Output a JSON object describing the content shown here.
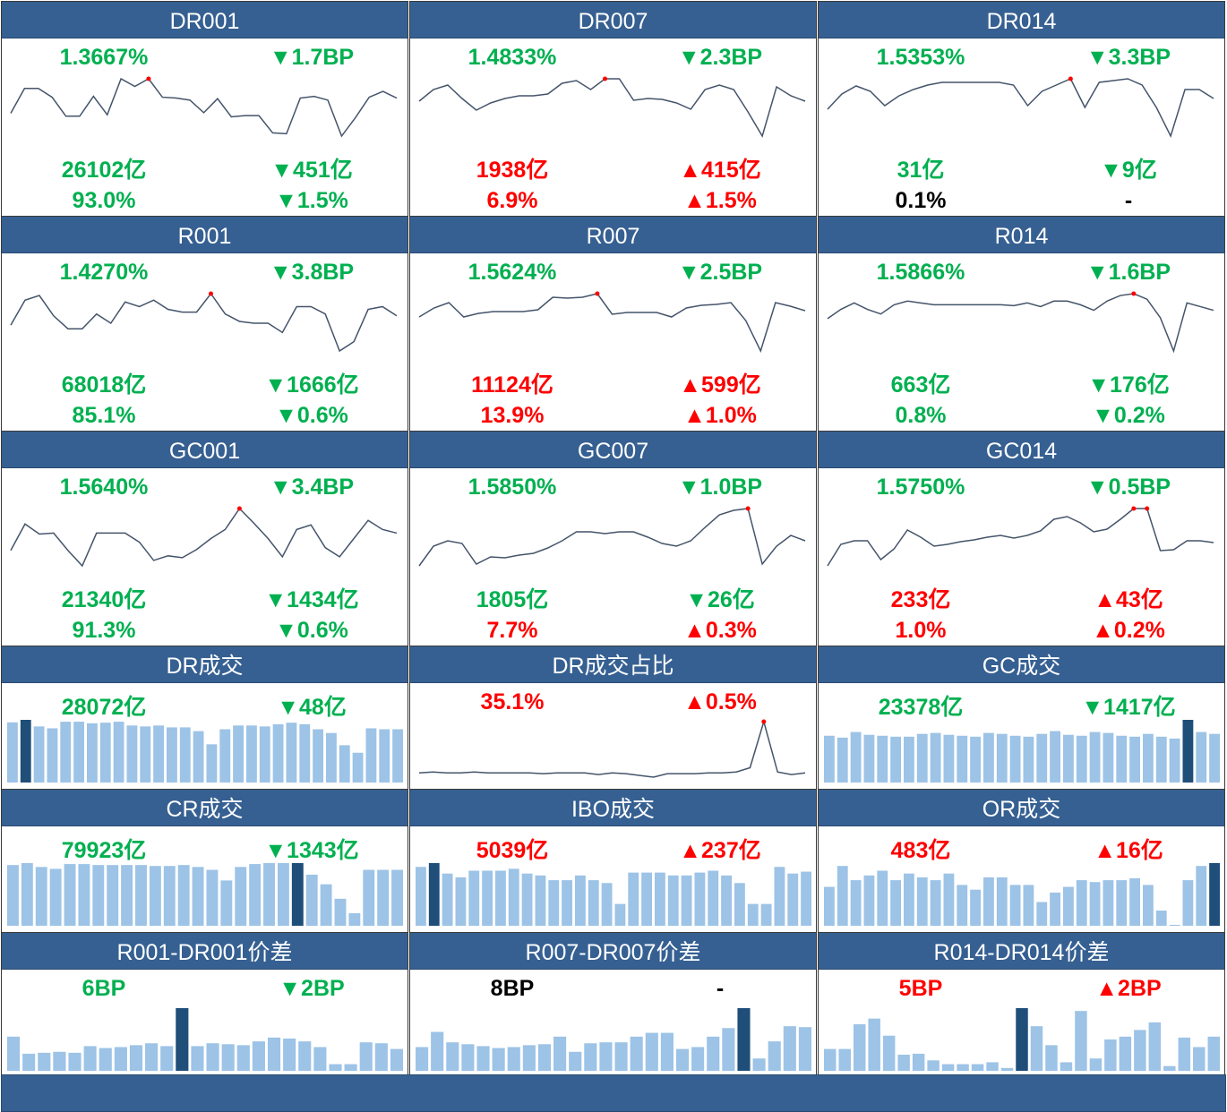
{
  "colors": {
    "header": "#366092",
    "up": "#ff0000",
    "down": "#00b050",
    "neutral": "#000000",
    "line": "#44546a",
    "highlight": "#ff0000",
    "bar": "#9dc3e6",
    "bar_highlight": "#1f4e79"
  },
  "cells": [
    {
      "title": "DR001",
      "type": "rate",
      "rate": {
        "text": "1.3667%",
        "color": "green"
      },
      "rate_chg": {
        "text": "▼1.7BP",
        "color": "green"
      },
      "vol": {
        "text": "26102亿",
        "color": "green"
      },
      "vol_chg": {
        "text": "▼451亿",
        "color": "green"
      },
      "share": {
        "text": "93.0%",
        "color": "green"
      },
      "share_chg": {
        "text": "▼1.5%",
        "color": "green"
      },
      "series": [
        120,
        205,
        205,
        175,
        110,
        110,
        178,
        115,
        238,
        212,
        238,
        175,
        172,
        165,
        122,
        170,
        108,
        112,
        112,
        53,
        50,
        172,
        178,
        165,
        42,
        105,
        175,
        195,
        172
      ],
      "highlight": [
        10
      ]
    },
    {
      "title": "DR007",
      "type": "rate",
      "rate": {
        "text": "1.4833%",
        "color": "green"
      },
      "rate_chg": {
        "text": "▼2.3BP",
        "color": "green"
      },
      "vol": {
        "text": "1938亿",
        "color": "red"
      },
      "vol_chg": {
        "text": "▲415亿",
        "color": "red"
      },
      "share": {
        "text": "6.9%",
        "color": "red"
      },
      "share_chg": {
        "text": "▲1.5%",
        "color": "red"
      },
      "series": [
        87,
        100,
        105,
        90,
        77,
        85,
        90,
        93,
        93,
        95,
        107,
        110,
        100,
        112,
        112,
        88,
        90,
        89,
        85,
        78,
        100,
        105,
        100,
        75,
        48,
        103,
        93,
        87
      ],
      "highlight": [
        13
      ]
    },
    {
      "title": "DR014",
      "type": "rate",
      "rate": {
        "text": "1.5353%",
        "color": "green"
      },
      "rate_chg": {
        "text": "▼3.3BP",
        "color": "green"
      },
      "vol": {
        "text": "31亿",
        "color": "green"
      },
      "vol_chg": {
        "text": "▼9亿",
        "color": "green"
      },
      "share": {
        "text": "0.1%",
        "color": "black"
      },
      "share_chg": {
        "text": "-",
        "color": "black"
      },
      "series": [
        78,
        95,
        104,
        98,
        82,
        93,
        100,
        105,
        108,
        108,
        108,
        108,
        108,
        105,
        82,
        98,
        105,
        112,
        80,
        108,
        110,
        112,
        105,
        80,
        48,
        100,
        100,
        90
      ],
      "highlight": [
        17
      ]
    },
    {
      "title": "R001",
      "type": "rate",
      "rate": {
        "text": "1.4270%",
        "color": "green"
      },
      "rate_chg": {
        "text": "▼3.8BP",
        "color": "green"
      },
      "vol": {
        "text": "68018亿",
        "color": "green"
      },
      "vol_chg": {
        "text": "▼1666亿",
        "color": "green"
      },
      "share": {
        "text": "85.1%",
        "color": "green"
      },
      "share_chg": {
        "text": "▼0.6%",
        "color": "green"
      },
      "series": [
        38,
        65,
        70,
        48,
        34,
        34,
        50,
        40,
        63,
        58,
        65,
        55,
        52,
        52,
        72,
        50,
        42,
        40,
        40,
        30,
        58,
        58,
        50,
        10,
        20,
        55,
        58,
        48
      ],
      "highlight": [
        14
      ]
    },
    {
      "title": "R007",
      "type": "rate",
      "rate": {
        "text": "1.5624%",
        "color": "green"
      },
      "rate_chg": {
        "text": "▼2.5BP",
        "color": "green"
      },
      "vol": {
        "text": "11124亿",
        "color": "red"
      },
      "vol_chg": {
        "text": "▲599亿",
        "color": "red"
      },
      "share": {
        "text": "13.9%",
        "color": "red"
      },
      "share_chg": {
        "text": "▲1.0%",
        "color": "red"
      },
      "series": [
        48,
        58,
        64,
        48,
        52,
        54,
        54,
        54,
        56,
        70,
        69,
        70,
        74,
        51,
        53,
        53,
        53,
        48,
        58,
        61,
        62,
        64,
        44,
        10,
        64,
        60,
        55
      ],
      "highlight": [
        12
      ]
    },
    {
      "title": "R014",
      "type": "rate",
      "rate": {
        "text": "1.5866%",
        "color": "green"
      },
      "rate_chg": {
        "text": "▼1.6BP",
        "color": "green"
      },
      "vol": {
        "text": "663亿",
        "color": "green"
      },
      "vol_chg": {
        "text": "▼176亿",
        "color": "green"
      },
      "share": {
        "text": "0.8%",
        "color": "green"
      },
      "share_chg": {
        "text": "▼0.2%",
        "color": "green"
      },
      "series": [
        45,
        55,
        62,
        55,
        50,
        60,
        64,
        62,
        60,
        60,
        60,
        60,
        60,
        60,
        59,
        62,
        58,
        64,
        64,
        60,
        54,
        64,
        70,
        72,
        66,
        46,
        10,
        62,
        58,
        54
      ],
      "highlight": [
        23
      ]
    },
    {
      "title": "GC001",
      "type": "rate",
      "rate": {
        "text": "1.5640%",
        "color": "green"
      },
      "rate_chg": {
        "text": "▼3.4BP",
        "color": "green"
      },
      "vol": {
        "text": "21340亿",
        "color": "green"
      },
      "vol_chg": {
        "text": "▼1434亿",
        "color": "green"
      },
      "share": {
        "text": "91.3%",
        "color": "green"
      },
      "share_chg": {
        "text": "▼0.6%",
        "color": "green"
      },
      "series": [
        37,
        66,
        55,
        56,
        37,
        20,
        56,
        56,
        56,
        46,
        26,
        31,
        29,
        38,
        50,
        60,
        83,
        67,
        50,
        30,
        60,
        65,
        40,
        30,
        50,
        70,
        60,
        56
      ],
      "highlight": [
        16
      ]
    },
    {
      "title": "GC007",
      "type": "rate",
      "rate": {
        "text": "1.5850%",
        "color": "green"
      },
      "rate_chg": {
        "text": "▼1.0BP",
        "color": "green"
      },
      "vol": {
        "text": "1805亿",
        "color": "green"
      },
      "vol_chg": {
        "text": "▼26亿",
        "color": "green"
      },
      "share": {
        "text": "7.7%",
        "color": "red"
      },
      "share_chg": {
        "text": "▲0.3%",
        "color": "red"
      },
      "series": [
        18,
        40,
        46,
        43,
        20,
        28,
        27,
        30,
        32,
        38,
        46,
        56,
        56,
        54,
        56,
        56,
        50,
        43,
        40,
        46,
        61,
        75,
        80,
        82,
        20,
        40,
        52,
        46
      ],
      "highlight": [
        23
      ]
    },
    {
      "title": "GC014",
      "type": "rate",
      "rate": {
        "text": "1.5750%",
        "color": "green"
      },
      "rate_chg": {
        "text": "▼0.5BP",
        "color": "green"
      },
      "vol": {
        "text": "233亿",
        "color": "red"
      },
      "vol_chg": {
        "text": "▲43亿",
        "color": "red"
      },
      "share": {
        "text": "1.0%",
        "color": "red"
      },
      "share_chg": {
        "text": "▲0.2%",
        "color": "red"
      },
      "series": [
        18,
        42,
        46,
        46,
        25,
        37,
        58,
        50,
        40,
        42,
        45,
        47,
        50,
        52,
        49,
        52,
        57,
        70,
        73,
        66,
        56,
        59,
        70,
        82,
        82,
        35,
        36,
        46,
        46,
        44
      ],
      "highlight": [
        23,
        24
      ]
    },
    {
      "title": "DR成交",
      "type": "bar",
      "left": {
        "text": "28072亿",
        "color": "green"
      },
      "right": {
        "text": "▼48亿",
        "color": "green"
      },
      "series": [
        192,
        200,
        179,
        173,
        194,
        194,
        189,
        191,
        194,
        182,
        179,
        182,
        176,
        176,
        164,
        122,
        170,
        182,
        182,
        179,
        186,
        191,
        186,
        170,
        158,
        119,
        95,
        173,
        170,
        170
      ],
      "highlight": [
        1
      ]
    },
    {
      "title": "DR成交占比",
      "type": "line",
      "left": {
        "text": "35.1%",
        "color": "red"
      },
      "right": {
        "text": "▲0.5%",
        "color": "red"
      },
      "series": [
        4,
        5,
        4,
        4,
        5,
        4,
        4,
        4,
        4,
        3,
        4,
        4,
        4,
        2,
        4,
        3,
        1,
        -1,
        3,
        3,
        3,
        4,
        4,
        5,
        10,
        64,
        5,
        2,
        4
      ],
      "highlight": [
        25
      ]
    },
    {
      "title": "GC成交",
      "type": "bar",
      "left": {
        "text": "23378亿",
        "color": "green"
      },
      "right": {
        "text": "▼1417亿",
        "color": "green"
      },
      "series": [
        50,
        48,
        54,
        51,
        50,
        49,
        49,
        52,
        53,
        51,
        50,
        49,
        53,
        52,
        50,
        49,
        52,
        55,
        51,
        50,
        54,
        53,
        50,
        49,
        52,
        49,
        47,
        67,
        54,
        52
      ],
      "highlight": [
        27
      ]
    },
    {
      "title": "CR成交",
      "type": "bar",
      "left": {
        "text": "79923亿",
        "color": "green"
      },
      "right": {
        "text": "▼1343亿",
        "color": "green"
      },
      "series": [
        63,
        65,
        61,
        59,
        64,
        64,
        63,
        63,
        63,
        63,
        62,
        62,
        63,
        61,
        58,
        47,
        61,
        64,
        65,
        65,
        65,
        53,
        43,
        28,
        13,
        58,
        58,
        58
      ],
      "highlight": [
        20
      ]
    },
    {
      "title": "IBO成交",
      "type": "bar",
      "left": {
        "text": "5039亿",
        "color": "red"
      },
      "right": {
        "text": "▲237亿",
        "color": "red"
      },
      "series": [
        62,
        66,
        55,
        51,
        58,
        58,
        58,
        60,
        55,
        53,
        48,
        48,
        53,
        48,
        45,
        23,
        56,
        56,
        56,
        53,
        53,
        56,
        58,
        53,
        45,
        23,
        23,
        62,
        55,
        57
      ],
      "highlight": [
        1
      ]
    },
    {
      "title": "OR成交",
      "type": "bar",
      "left": {
        "text": "483亿",
        "color": "red"
      },
      "right": {
        "text": "▲16亿",
        "color": "red"
      },
      "series": [
        41,
        63,
        48,
        53,
        58,
        48,
        55,
        51,
        48,
        55,
        43,
        38,
        51,
        51,
        43,
        43,
        25,
        35,
        41,
        48,
        46,
        48,
        48,
        50,
        43,
        16,
        1,
        48,
        63,
        66
      ],
      "highlight": [
        29
      ]
    },
    {
      "title": "R001-DR001价差",
      "type": "bar",
      "left": {
        "text": "6BP",
        "color": "green"
      },
      "right": {
        "text": "▼2BP",
        "color": "green"
      },
      "series": [
        36,
        18,
        19,
        20,
        19,
        26,
        24,
        25,
        27,
        29,
        26,
        66,
        26,
        29,
        28,
        27,
        31,
        35,
        34,
        31,
        25,
        7,
        7,
        30,
        29,
        23
      ],
      "highlight": [
        11
      ]
    },
    {
      "title": "R007-DR007价差",
      "type": "bar",
      "left": {
        "text": "8BP",
        "color": "black"
      },
      "right": {
        "text": "-",
        "color": "black"
      },
      "series": [
        25,
        41,
        30,
        28,
        26,
        24,
        25,
        27,
        28,
        36,
        20,
        29,
        30,
        30,
        36,
        40,
        40,
        23,
        25,
        36,
        45,
        66,
        13,
        31,
        47,
        46
      ],
      "highlight": [
        21
      ]
    },
    {
      "title": "R014-DR014价差",
      "type": "bar",
      "left": {
        "text": "5BP",
        "color": "red"
      },
      "right": {
        "text": "▲2BP",
        "color": "red"
      },
      "series": [
        23,
        23,
        49,
        55,
        37,
        17,
        18,
        11,
        7,
        7,
        7,
        9,
        3,
        66,
        47,
        27,
        9,
        63,
        13,
        33,
        36,
        43,
        51,
        5,
        35,
        25,
        36
      ],
      "highlight": [
        13
      ]
    }
  ]
}
